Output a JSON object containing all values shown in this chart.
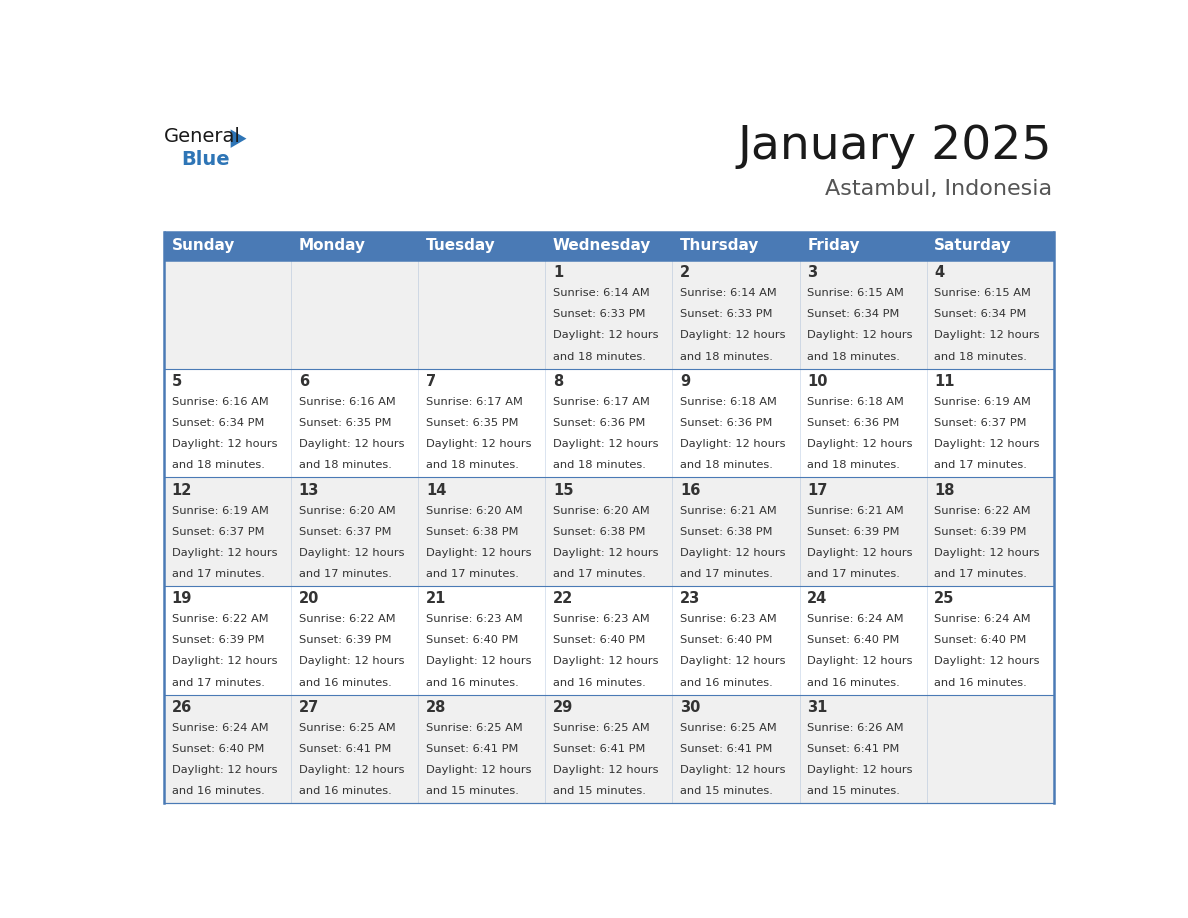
{
  "title": "January 2025",
  "subtitle": "Astambul, Indonesia",
  "header_bg": "#4a7ab5",
  "header_text_color": "#ffffff",
  "cell_bg_odd": "#f0f0f0",
  "cell_bg_even": "#ffffff",
  "border_color": "#4a7ab5",
  "text_color": "#333333",
  "days_of_week": [
    "Sunday",
    "Monday",
    "Tuesday",
    "Wednesday",
    "Thursday",
    "Friday",
    "Saturday"
  ],
  "weeks": [
    [
      {
        "day": "",
        "sunrise": "",
        "sunset": "",
        "daylight_min": ""
      },
      {
        "day": "",
        "sunrise": "",
        "sunset": "",
        "daylight_min": ""
      },
      {
        "day": "",
        "sunrise": "",
        "sunset": "",
        "daylight_min": ""
      },
      {
        "day": "1",
        "sunrise": "6:14 AM",
        "sunset": "6:33 PM",
        "daylight_min": "18"
      },
      {
        "day": "2",
        "sunrise": "6:14 AM",
        "sunset": "6:33 PM",
        "daylight_min": "18"
      },
      {
        "day": "3",
        "sunrise": "6:15 AM",
        "sunset": "6:34 PM",
        "daylight_min": "18"
      },
      {
        "day": "4",
        "sunrise": "6:15 AM",
        "sunset": "6:34 PM",
        "daylight_min": "18"
      }
    ],
    [
      {
        "day": "5",
        "sunrise": "6:16 AM",
        "sunset": "6:34 PM",
        "daylight_min": "18"
      },
      {
        "day": "6",
        "sunrise": "6:16 AM",
        "sunset": "6:35 PM",
        "daylight_min": "18"
      },
      {
        "day": "7",
        "sunrise": "6:17 AM",
        "sunset": "6:35 PM",
        "daylight_min": "18"
      },
      {
        "day": "8",
        "sunrise": "6:17 AM",
        "sunset": "6:36 PM",
        "daylight_min": "18"
      },
      {
        "day": "9",
        "sunrise": "6:18 AM",
        "sunset": "6:36 PM",
        "daylight_min": "18"
      },
      {
        "day": "10",
        "sunrise": "6:18 AM",
        "sunset": "6:36 PM",
        "daylight_min": "18"
      },
      {
        "day": "11",
        "sunrise": "6:19 AM",
        "sunset": "6:37 PM",
        "daylight_min": "17"
      }
    ],
    [
      {
        "day": "12",
        "sunrise": "6:19 AM",
        "sunset": "6:37 PM",
        "daylight_min": "17"
      },
      {
        "day": "13",
        "sunrise": "6:20 AM",
        "sunset": "6:37 PM",
        "daylight_min": "17"
      },
      {
        "day": "14",
        "sunrise": "6:20 AM",
        "sunset": "6:38 PM",
        "daylight_min": "17"
      },
      {
        "day": "15",
        "sunrise": "6:20 AM",
        "sunset": "6:38 PM",
        "daylight_min": "17"
      },
      {
        "day": "16",
        "sunrise": "6:21 AM",
        "sunset": "6:38 PM",
        "daylight_min": "17"
      },
      {
        "day": "17",
        "sunrise": "6:21 AM",
        "sunset": "6:39 PM",
        "daylight_min": "17"
      },
      {
        "day": "18",
        "sunrise": "6:22 AM",
        "sunset": "6:39 PM",
        "daylight_min": "17"
      }
    ],
    [
      {
        "day": "19",
        "sunrise": "6:22 AM",
        "sunset": "6:39 PM",
        "daylight_min": "17"
      },
      {
        "day": "20",
        "sunrise": "6:22 AM",
        "sunset": "6:39 PM",
        "daylight_min": "16"
      },
      {
        "day": "21",
        "sunrise": "6:23 AM",
        "sunset": "6:40 PM",
        "daylight_min": "16"
      },
      {
        "day": "22",
        "sunrise": "6:23 AM",
        "sunset": "6:40 PM",
        "daylight_min": "16"
      },
      {
        "day": "23",
        "sunrise": "6:23 AM",
        "sunset": "6:40 PM",
        "daylight_min": "16"
      },
      {
        "day": "24",
        "sunrise": "6:24 AM",
        "sunset": "6:40 PM",
        "daylight_min": "16"
      },
      {
        "day": "25",
        "sunrise": "6:24 AM",
        "sunset": "6:40 PM",
        "daylight_min": "16"
      }
    ],
    [
      {
        "day": "26",
        "sunrise": "6:24 AM",
        "sunset": "6:40 PM",
        "daylight_min": "16"
      },
      {
        "day": "27",
        "sunrise": "6:25 AM",
        "sunset": "6:41 PM",
        "daylight_min": "16"
      },
      {
        "day": "28",
        "sunrise": "6:25 AM",
        "sunset": "6:41 PM",
        "daylight_min": "15"
      },
      {
        "day": "29",
        "sunrise": "6:25 AM",
        "sunset": "6:41 PM",
        "daylight_min": "15"
      },
      {
        "day": "30",
        "sunrise": "6:25 AM",
        "sunset": "6:41 PM",
        "daylight_min": "15"
      },
      {
        "day": "31",
        "sunrise": "6:26 AM",
        "sunset": "6:41 PM",
        "daylight_min": "15"
      },
      {
        "day": "",
        "sunrise": "",
        "sunset": "",
        "daylight_min": ""
      }
    ]
  ],
  "logo_general_color": "#1a1a1a",
  "logo_blue_color": "#2e75b6",
  "logo_triangle_color": "#2e75b6",
  "title_color": "#1a1a1a",
  "subtitle_color": "#555555"
}
